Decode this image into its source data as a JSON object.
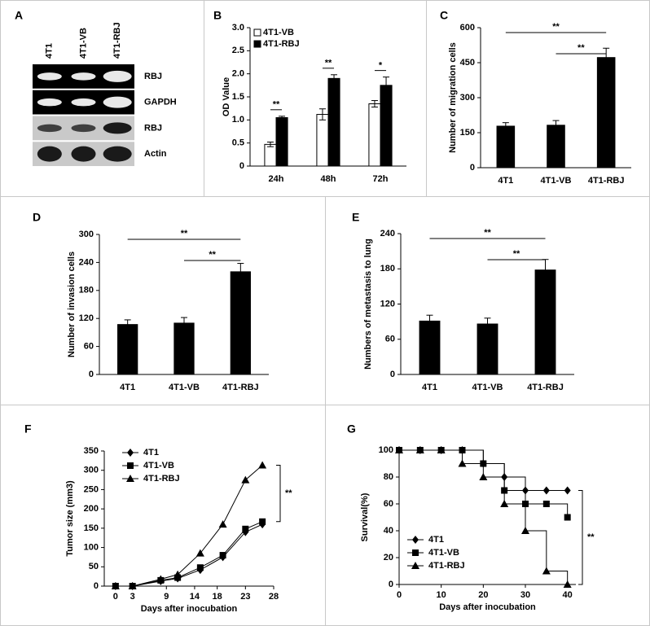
{
  "chart_data": [
    {
      "type": "blot",
      "panel": "A",
      "lanes": [
        "4T1",
        "4T1-VB",
        "4T1-RBJ"
      ],
      "rows": [
        "RBJ",
        "GAPDH",
        "RBJ",
        "Actin"
      ]
    },
    {
      "type": "bar",
      "panel": "B",
      "ylabel": "OD Value",
      "categories": [
        "24h",
        "48h",
        "72h"
      ],
      "series": [
        {
          "name": "4T1-VB",
          "color": "#ffffff",
          "values": [
            0.47,
            1.12,
            1.35
          ],
          "errors": [
            0.05,
            0.12,
            0.07
          ]
        },
        {
          "name": "4T1-RBJ",
          "color": "#000000",
          "values": [
            1.05,
            1.9,
            1.75
          ],
          "errors": [
            0.03,
            0.08,
            0.18
          ]
        }
      ],
      "ylim": [
        0,
        3
      ],
      "yticks": [
        0,
        0.5,
        {
          "value": 1,
          "label": "1.0"
        },
        1.5,
        {
          "value": 2,
          "label": "2.0"
        },
        2.5,
        {
          "value": 3,
          "label": "3.0"
        }
      ],
      "annotations": [
        "**",
        "**",
        "*"
      ]
    },
    {
      "type": "bar",
      "panel": "C",
      "ylabel": "Number of migration cells",
      "categories": [
        "4T1",
        "4T1-VB",
        "4T1-RBJ"
      ],
      "values": [
        178,
        182,
        472
      ],
      "errors": [
        15,
        20,
        40
      ],
      "color": "#000000",
      "ylim": [
        0,
        600
      ],
      "yticks": [
        0,
        150,
        300,
        450,
        600
      ],
      "annotations": [
        "**",
        "**"
      ]
    },
    {
      "type": "bar",
      "panel": "D",
      "ylabel": "Number of invasion cells",
      "categories": [
        "4T1",
        "4T1-VB",
        "4T1-RBJ"
      ],
      "values": [
        107,
        110,
        220
      ],
      "errors": [
        10,
        12,
        18
      ],
      "color": "#000000",
      "ylim": [
        0,
        300
      ],
      "yticks": [
        0,
        60,
        120,
        180,
        240,
        300
      ],
      "annotations": [
        "**",
        "**"
      ]
    },
    {
      "type": "bar",
      "panel": "E",
      "ylabel": "Numbers of metastasis to lung",
      "categories": [
        "4T1",
        "4T1-VB",
        "4T1-RBJ"
      ],
      "values": [
        91,
        86,
        178
      ],
      "errors": [
        10,
        10,
        18
      ],
      "color": "#000000",
      "ylim": [
        0,
        240
      ],
      "yticks": [
        0,
        60,
        120,
        180,
        240
      ],
      "annotations": [
        "**",
        "**"
      ]
    },
    {
      "type": "line",
      "panel": "F",
      "ylabel": "Tumor size (mm3)",
      "xlabel": "Days after inocubation",
      "x": [
        0,
        3,
        8,
        11,
        15,
        19,
        23,
        26
      ],
      "series": [
        {
          "name": "4T1",
          "color": "#000000",
          "marker": "diamond",
          "values": [
            0,
            0,
            13,
            20,
            42,
            75,
            140,
            160
          ]
        },
        {
          "name": "4T1-VB",
          "color": "#000000",
          "marker": "square",
          "values": [
            0,
            0,
            15,
            22,
            48,
            80,
            148,
            167
          ]
        },
        {
          "name": "4T1-RBJ",
          "color": "#000000",
          "marker": "triangle",
          "values": [
            0,
            0,
            18,
            30,
            85,
            160,
            275,
            313
          ]
        }
      ],
      "xlim": [
        -2,
        28
      ],
      "xticks": [
        0,
        3,
        9,
        14,
        18,
        23,
        28
      ],
      "ylim": [
        0,
        350
      ],
      "yticks": [
        0,
        50,
        100,
        150,
        200,
        250,
        300,
        350
      ],
      "annotation": "**"
    },
    {
      "type": "step",
      "panel": "G",
      "ylabel": "Survival(%)",
      "xlabel": "Days after inocubation",
      "x": [
        0,
        5,
        10,
        15,
        20,
        25,
        30,
        35,
        40
      ],
      "series": [
        {
          "name": "4T1",
          "color": "#000000",
          "marker": "diamond",
          "values": [
            100,
            100,
            100,
            100,
            90,
            80,
            70,
            70,
            70
          ]
        },
        {
          "name": "4T1-VB",
          "color": "#000000",
          "marker": "square",
          "values": [
            100,
            100,
            100,
            100,
            90,
            70,
            60,
            60,
            50
          ]
        },
        {
          "name": "4T1-RBJ",
          "color": "#000000",
          "marker": "triangle",
          "values": [
            100,
            100,
            100,
            90,
            80,
            60,
            40,
            10,
            0
          ]
        }
      ],
      "xlim": [
        0,
        42
      ],
      "xticks": [
        0,
        10,
        20,
        30,
        40
      ],
      "ylim": [
        0,
        100
      ],
      "yticks": [
        0,
        20,
        40,
        60,
        80,
        100
      ],
      "annotation": "**"
    }
  ]
}
